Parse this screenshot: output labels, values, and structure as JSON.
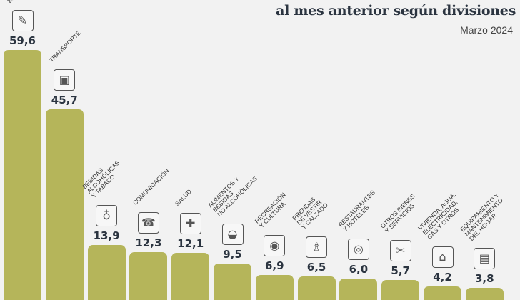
{
  "header": {
    "title": "al mes anterior según divisiones",
    "subtitle": "Marzo 2024"
  },
  "chart_data": {
    "type": "bar",
    "title": "al mes anterior según divisiones",
    "subtitle": "Marzo 2024",
    "categories": [
      "EDUCACIÓN",
      "TRANSPORTE",
      "BEBIDAS\nALCOHÓLICAS\nY TABACO",
      "COMUNICACIÓN",
      "SALUD",
      "ALIMENTOS Y\nBEBIDAS\nNO ALCOHÓLICAS",
      "RECREACIÓN\nY CULTURA",
      "PRENDAS\nDE VESTIR\nY CALZADO",
      "RESTAURANTES\nY HOTELES",
      "OTROS BIENES\nY SERVICIOS",
      "VIVIENDA, AGUA,\nELECTRICIDAD,\nGAS Y OTROS",
      "EQUIPAMIENTO Y\nMANTENIMIENTO\nDEL HOGAR"
    ],
    "values": [
      59.6,
      45.7,
      13.9,
      12.3,
      12.1,
      9.5,
      6.9,
      6.5,
      6.0,
      5.7,
      4.2,
      3.8
    ],
    "value_labels": [
      "59,6",
      "45,7",
      "13,9",
      "12,3",
      "12,1",
      "9,5",
      "6,9",
      "6,5",
      "6,0",
      "5,7",
      "4,2",
      "3,8"
    ],
    "icons": [
      "education-icon",
      "bus-icon",
      "wine-bottle-icon",
      "phone-icon",
      "hospital-icon",
      "food-bowl-icon",
      "camera-icon",
      "clothes-icon",
      "plate-suitcase-icon",
      "scissors-ribbon-icon",
      "house-documents-icon",
      "microwave-icon"
    ],
    "xlabel": "",
    "ylabel": "",
    "ylim": [
      0,
      60
    ],
    "grid": false,
    "legend": "none",
    "bar_color": "#b5b55a"
  }
}
